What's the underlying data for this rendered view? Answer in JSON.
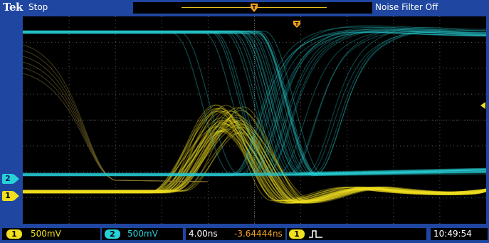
{
  "header": {
    "brand": "Tek",
    "acquisition_state": "Stop",
    "filter_status": "Noise Filter Off"
  },
  "channels": {
    "ch1": {
      "label": "1",
      "scale": "500mV",
      "color": "#f0e020"
    },
    "ch2": {
      "label": "2",
      "scale": "500mV",
      "color": "#28d0d8"
    }
  },
  "horizontal": {
    "scale": "4.00ns",
    "position": "-3.64444ns"
  },
  "trigger": {
    "source": "1",
    "type_icon": "rising-edge-pulse-icon"
  },
  "clock": "10:49:54",
  "colors": {
    "frame": "#1f46a0",
    "grid": "#5a5a5a",
    "trigger_marker": "#f0a020"
  }
}
